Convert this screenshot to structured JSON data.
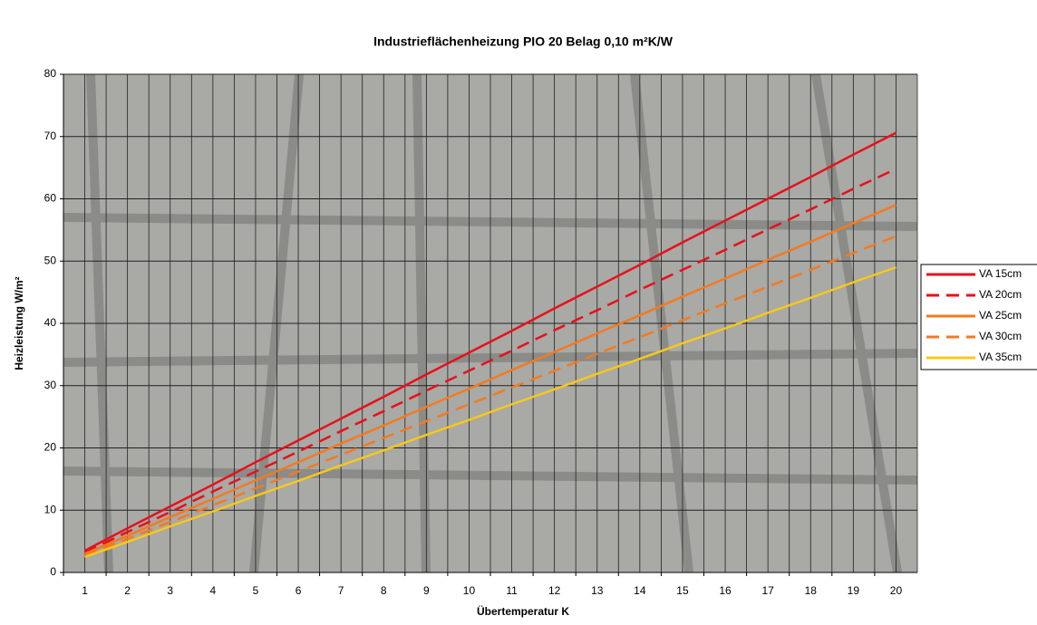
{
  "chart_data": {
    "type": "line",
    "title": "Industrieflächenheizung PIO 20 Belag 0,10 m²K/W",
    "xlabel": "Übertemperatur K",
    "ylabel": "Heizleistung W/m²",
    "categories": [
      "1",
      "2",
      "3",
      "4",
      "5",
      "6",
      "7",
      "8",
      "9",
      "10",
      "11",
      "12",
      "13",
      "14",
      "15",
      "16",
      "17",
      "18",
      "19",
      "20"
    ],
    "ylim": [
      0,
      80
    ],
    "yticks": [
      0,
      10,
      20,
      30,
      40,
      50,
      60,
      70,
      80
    ],
    "grid": true,
    "series": [
      {
        "name": "VA 15cm",
        "color": "#e8101a",
        "dashed": false,
        "values": [
          3.5,
          7.1,
          10.6,
          14.1,
          17.7,
          21.2,
          24.7,
          28.2,
          31.8,
          35.3,
          38.8,
          42.4,
          45.9,
          49.4,
          53.0,
          56.5,
          60.0,
          63.5,
          67.1,
          70.6
        ]
      },
      {
        "name": "VA 20cm",
        "color": "#e8101a",
        "dashed": true,
        "values": [
          3.2,
          6.5,
          9.7,
          13.0,
          16.2,
          19.4,
          22.7,
          25.9,
          29.2,
          32.4,
          35.6,
          38.9,
          42.1,
          45.4,
          48.6,
          51.8,
          55.1,
          58.3,
          61.6,
          64.8
        ]
      },
      {
        "name": "VA 25cm",
        "color": "#f47a20",
        "dashed": false,
        "values": [
          3.0,
          5.9,
          8.9,
          11.8,
          14.8,
          17.7,
          20.7,
          23.6,
          26.6,
          29.5,
          32.5,
          35.4,
          38.4,
          41.3,
          44.3,
          47.2,
          50.2,
          53.1,
          56.1,
          59.0
        ]
      },
      {
        "name": "VA 30cm",
        "color": "#f47a20",
        "dashed": true,
        "values": [
          2.7,
          5.4,
          8.1,
          10.8,
          13.5,
          16.2,
          18.9,
          21.6,
          24.3,
          27.0,
          29.7,
          32.4,
          35.1,
          37.8,
          40.5,
          43.2,
          45.9,
          48.6,
          51.3,
          54.0
        ]
      },
      {
        "name": "VA 35cm",
        "color": "#f8c81a",
        "dashed": false,
        "values": [
          2.5,
          4.9,
          7.4,
          9.8,
          12.3,
          14.7,
          17.2,
          19.6,
          22.1,
          24.5,
          27.0,
          29.4,
          31.9,
          34.3,
          36.8,
          39.2,
          41.7,
          44.1,
          46.6,
          49.0
        ]
      }
    ]
  }
}
